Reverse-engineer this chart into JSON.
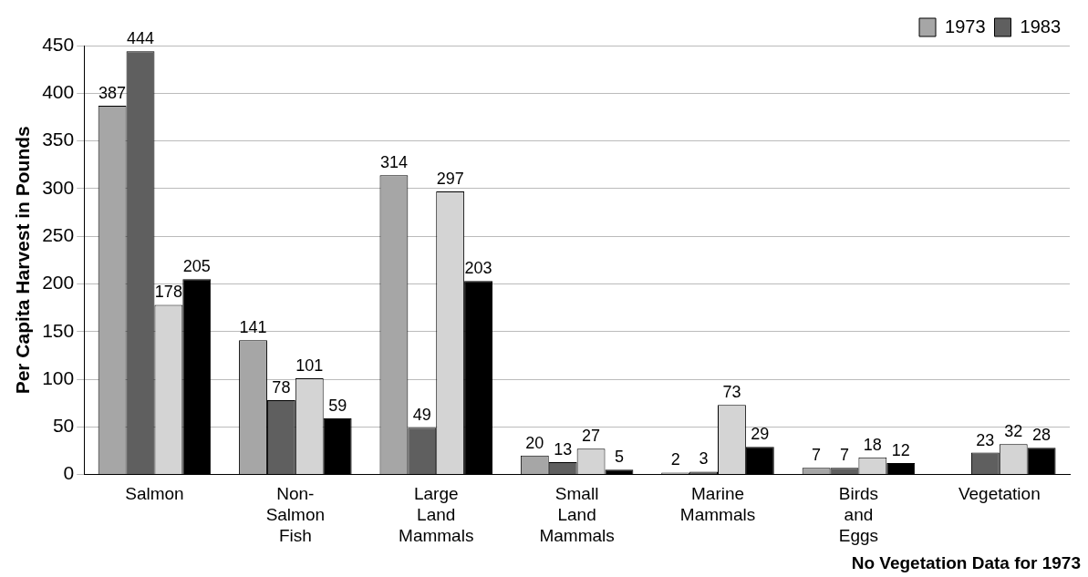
{
  "chart_data": {
    "type": "bar",
    "ylabel": "Per Capita Harvest in Pounds",
    "categories": [
      "Salmon",
      "Non-Salmon Fish",
      "Large Land Mammals",
      "Small Land Mammals",
      "Marine Mammals",
      "Birds and Eggs",
      "Vegetation"
    ],
    "series": [
      {
        "name": "1973",
        "color": "#a6a6a6",
        "values": [
          387,
          141,
          314,
          20,
          2,
          7,
          null
        ]
      },
      {
        "name": "1983",
        "color": "#5f5f5f",
        "values": [
          444,
          78,
          49,
          13,
          3,
          7,
          23
        ]
      },
      {
        "color": "#d4d4d4",
        "values": [
          178,
          101,
          297,
          27,
          73,
          18,
          32
        ]
      },
      {
        "color": "#000000",
        "values": [
          205,
          59,
          203,
          5,
          29,
          12,
          28
        ]
      }
    ],
    "ylim": [
      0,
      450
    ],
    "yticks": [
      0,
      50,
      100,
      150,
      200,
      250,
      300,
      350,
      400,
      450
    ],
    "grid": "y",
    "legend": "top right",
    "data_labels": true,
    "annotations": [
      "No Vegetation Data for 1973"
    ]
  }
}
